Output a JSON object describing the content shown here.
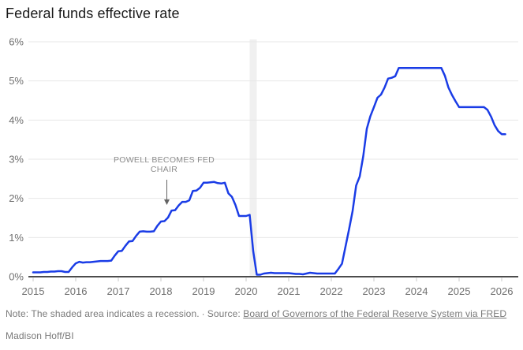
{
  "title": "Federal funds effective rate",
  "annotation": {
    "line1": "POWELL BECOMES FED",
    "line2": "CHAIR",
    "points_to": "2018-02"
  },
  "footer": {
    "note": "Note: The shaded area indicates a recession.",
    "separator": "·",
    "source_prefix": "Source:",
    "source_link": "Board of Governors of the Federal Reserve System via FRED",
    "credit": "Madison Hoff/BI"
  },
  "colors": {
    "line": "#1a3ce6",
    "grid": "#e7e7e7",
    "axis": "#111111",
    "recession_band": "#f0f0f0",
    "tick_label": "#6f6f6f",
    "tick_mark": "#c8c8c8",
    "annotation_text": "#8c8c8c",
    "arrow": "#636363",
    "title": "#1a1a1a",
    "footer": "#7a7a7a"
  },
  "chart_data": {
    "type": "line",
    "title": "Federal funds effective rate",
    "ylabel": "",
    "xlabel": "",
    "y_unit": "%",
    "ylim": [
      0,
      6
    ],
    "y_ticks": [
      "0%",
      "1%",
      "2%",
      "3%",
      "4%",
      "5%",
      "6%"
    ],
    "x_ticks": [
      2015,
      2016,
      2017,
      2018,
      2019,
      2020,
      2021,
      2022,
      2023,
      2024,
      2025,
      2026
    ],
    "grid": "horizontal",
    "legend": "none",
    "series_name": "Federal funds effective rate (%)",
    "x_start": "2015-01",
    "x_step": "month",
    "monthly_values": [
      0.11,
      0.11,
      0.11,
      0.12,
      0.12,
      0.13,
      0.13,
      0.14,
      0.14,
      0.12,
      0.12,
      0.24,
      0.34,
      0.38,
      0.36,
      0.37,
      0.37,
      0.38,
      0.39,
      0.4,
      0.4,
      0.4,
      0.41,
      0.54,
      0.65,
      0.66,
      0.79,
      0.9,
      0.91,
      1.04,
      1.15,
      1.16,
      1.15,
      1.15,
      1.16,
      1.3,
      1.41,
      1.42,
      1.51,
      1.69,
      1.7,
      1.82,
      1.91,
      1.91,
      1.95,
      2.19,
      2.2,
      2.27,
      2.4,
      2.4,
      2.41,
      2.42,
      2.39,
      2.38,
      2.4,
      2.13,
      2.04,
      1.83,
      1.55,
      1.55,
      1.55,
      1.58,
      0.65,
      0.05,
      0.05,
      0.08,
      0.09,
      0.1,
      0.09,
      0.09,
      0.09,
      0.09,
      0.09,
      0.08,
      0.07,
      0.07,
      0.06,
      0.08,
      0.1,
      0.09,
      0.08,
      0.08,
      0.08,
      0.08,
      0.08,
      0.08,
      0.2,
      0.33,
      0.77,
      1.21,
      1.68,
      2.33,
      2.56,
      3.08,
      3.78,
      4.1,
      4.33,
      4.57,
      4.65,
      4.83,
      5.06,
      5.08,
      5.12,
      5.33,
      5.33,
      5.33,
      5.33,
      5.33,
      5.33,
      5.33,
      5.33,
      5.33,
      5.33,
      5.33,
      5.33,
      5.33,
      5.13,
      4.83,
      4.64,
      4.48,
      4.33,
      4.33,
      4.33,
      4.33,
      4.33,
      4.33,
      4.33,
      4.33,
      4.26,
      4.09,
      3.87,
      3.72,
      3.64,
      3.64
    ],
    "recession_band": {
      "start": "2020-02",
      "end": "2020-04"
    }
  }
}
